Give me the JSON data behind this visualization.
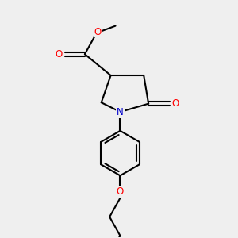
{
  "bg_color": "#efefef",
  "atom_color_O": "#ff0000",
  "atom_color_N": "#0000cc",
  "bond_color": "#000000",
  "bond_lw": 1.5,
  "font_size": 8.5,
  "fig_size": [
    3.0,
    3.0
  ],
  "dpi": 100,
  "xlim": [
    0,
    10
  ],
  "ylim": [
    0,
    10
  ],
  "ring_ketone_O_label": "O",
  "ester_O1_label": "O",
  "ester_O2_label": "O",
  "N_label": "N",
  "butoxy_O_label": "O"
}
